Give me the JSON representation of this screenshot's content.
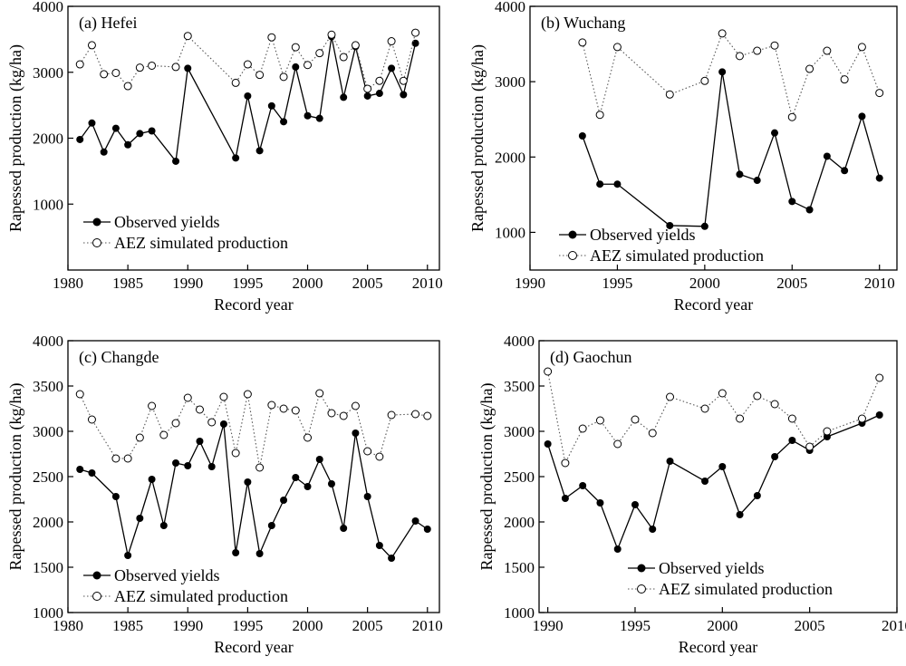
{
  "chart_data": [
    {
      "type": "line",
      "title": "(a) Hefei",
      "xlabel": "Record year",
      "ylabel": "Rapessed production (kg/ha)",
      "xlim": [
        1980,
        2011
      ],
      "ylim": [
        0,
        4000
      ],
      "xticks": [
        1980,
        1985,
        1990,
        1995,
        2000,
        2005,
        2010
      ],
      "yticks": [
        1000,
        2000,
        3000,
        4000
      ],
      "legend": "bottom-left",
      "series": [
        {
          "name": "Observed yields",
          "x": [
            1981,
            1982,
            1983,
            1984,
            1985,
            1986,
            1987,
            1989,
            1990,
            1994,
            1995,
            1996,
            1997,
            1998,
            1999,
            2000,
            2001,
            2002,
            2003,
            2004,
            2005,
            2006,
            2007,
            2008,
            2009
          ],
          "y": [
            1980,
            2230,
            1790,
            2150,
            1900,
            2070,
            2110,
            1650,
            3060,
            1700,
            2640,
            1810,
            2490,
            2250,
            3080,
            2340,
            2300,
            3540,
            2620,
            3390,
            2640,
            2680,
            3060,
            2660,
            3440
          ]
        },
        {
          "name": "AEZ simulated production",
          "x": [
            1981,
            1982,
            1983,
            1984,
            1985,
            1986,
            1987,
            1989,
            1990,
            1994,
            1995,
            1996,
            1997,
            1998,
            1999,
            2000,
            2001,
            2002,
            2003,
            2004,
            2005,
            2006,
            2007,
            2008,
            2009
          ],
          "y": [
            3120,
            3410,
            2970,
            2990,
            2790,
            3070,
            3100,
            3080,
            3550,
            2840,
            3120,
            2960,
            3530,
            2930,
            3380,
            3110,
            3290,
            3570,
            3230,
            3410,
            2750,
            2870,
            3470,
            2870,
            3600
          ]
        }
      ]
    },
    {
      "type": "line",
      "title": "(b) Wuchang",
      "xlabel": "Record year",
      "ylabel": "Rapessed production (kg/ha)",
      "xlim": [
        1990,
        2011
      ],
      "ylim": [
        500,
        4000
      ],
      "xticks": [
        1990,
        1995,
        2000,
        2005,
        2010
      ],
      "yticks": [
        1000,
        2000,
        3000,
        4000
      ],
      "legend": "bottom-left",
      "series": [
        {
          "name": "Observed yields",
          "x": [
            1993,
            1994,
            1995,
            1998,
            2000,
            2001,
            2002,
            2003,
            2004,
            2005,
            2006,
            2007,
            2008,
            2009,
            2010
          ],
          "y": [
            2280,
            1640,
            1640,
            1090,
            1080,
            3130,
            1770,
            1690,
            2320,
            1410,
            1300,
            2010,
            1820,
            2540,
            1720
          ]
        },
        {
          "name": "AEZ simulated production",
          "x": [
            1993,
            1994,
            1995,
            1998,
            2000,
            2001,
            2002,
            2003,
            2004,
            2005,
            2006,
            2007,
            2008,
            2009,
            2010
          ],
          "y": [
            3520,
            2560,
            3460,
            2830,
            3010,
            3640,
            3340,
            3410,
            3480,
            2530,
            3170,
            3410,
            3030,
            3460,
            2850
          ]
        }
      ]
    },
    {
      "type": "line",
      "title": "(c) Changde",
      "xlabel": "Record year",
      "ylabel": "Rapessed production (kg/ha)",
      "xlim": [
        1980,
        2011
      ],
      "ylim": [
        1000,
        4000
      ],
      "xticks": [
        1980,
        1985,
        1990,
        1995,
        2000,
        2005,
        2010
      ],
      "yticks": [
        1000,
        1500,
        2000,
        2500,
        3000,
        3500,
        4000
      ],
      "legend": "bottom-left",
      "series": [
        {
          "name": "Observed yields",
          "x": [
            1981,
            1982,
            1984,
            1985,
            1986,
            1987,
            1988,
            1989,
            1990,
            1991,
            1992,
            1993,
            1994,
            1995,
            1996,
            1997,
            1998,
            1999,
            2000,
            2001,
            2002,
            2003,
            2004,
            2005,
            2006,
            2007,
            2009,
            2010
          ],
          "y": [
            2580,
            2540,
            2280,
            1630,
            2040,
            2470,
            1960,
            2650,
            2620,
            2890,
            2610,
            3080,
            1660,
            2440,
            1650,
            1960,
            2240,
            2490,
            2390,
            2690,
            2420,
            1930,
            2980,
            2280,
            1740,
            1600,
            2010,
            1920
          ]
        },
        {
          "name": "AEZ simulated production",
          "x": [
            1981,
            1982,
            1984,
            1985,
            1986,
            1987,
            1988,
            1989,
            1990,
            1991,
            1992,
            1993,
            1994,
            1995,
            1996,
            1997,
            1998,
            1999,
            2000,
            2001,
            2002,
            2003,
            2004,
            2005,
            2006,
            2007,
            2009,
            2010
          ],
          "y": [
            3410,
            3130,
            2700,
            2700,
            2930,
            3280,
            2960,
            3090,
            3370,
            3240,
            3100,
            3380,
            2760,
            3410,
            2600,
            3290,
            3250,
            3230,
            2930,
            3420,
            3200,
            3170,
            3280,
            2780,
            2720,
            3180,
            3190,
            3170
          ]
        }
      ]
    },
    {
      "type": "line",
      "title": "(d) Gaochun",
      "xlabel": "Record year",
      "ylabel": "Rapessed production (kg/ha)",
      "xlim": [
        1989.5,
        2010
      ],
      "ylim": [
        1000,
        4000
      ],
      "xticks": [
        1990,
        1995,
        2000,
        2005,
        2010
      ],
      "yticks": [
        1000,
        1500,
        2000,
        2500,
        3000,
        3500,
        4000
      ],
      "legend": "bottom-right",
      "series": [
        {
          "name": "Observed yields",
          "x": [
            1990,
            1991,
            1992,
            1993,
            1994,
            1995,
            1996,
            1997,
            1999,
            2000,
            2001,
            2002,
            2003,
            2004,
            2005,
            2006,
            2008,
            2009
          ],
          "y": [
            2860,
            2260,
            2400,
            2210,
            1700,
            2190,
            1920,
            2670,
            2450,
            2610,
            2080,
            2290,
            2720,
            2900,
            2790,
            2940,
            3090,
            3180
          ]
        },
        {
          "name": "AEZ simulated production",
          "x": [
            1990,
            1991,
            1992,
            1993,
            1994,
            1995,
            1996,
            1997,
            1999,
            2000,
            2001,
            2002,
            2003,
            2004,
            2005,
            2006,
            2008,
            2009
          ],
          "y": [
            3660,
            2650,
            3030,
            3120,
            2860,
            3130,
            2980,
            3380,
            3250,
            3420,
            3140,
            3390,
            3300,
            3140,
            2830,
            3000,
            3140,
            3590
          ]
        }
      ]
    }
  ]
}
